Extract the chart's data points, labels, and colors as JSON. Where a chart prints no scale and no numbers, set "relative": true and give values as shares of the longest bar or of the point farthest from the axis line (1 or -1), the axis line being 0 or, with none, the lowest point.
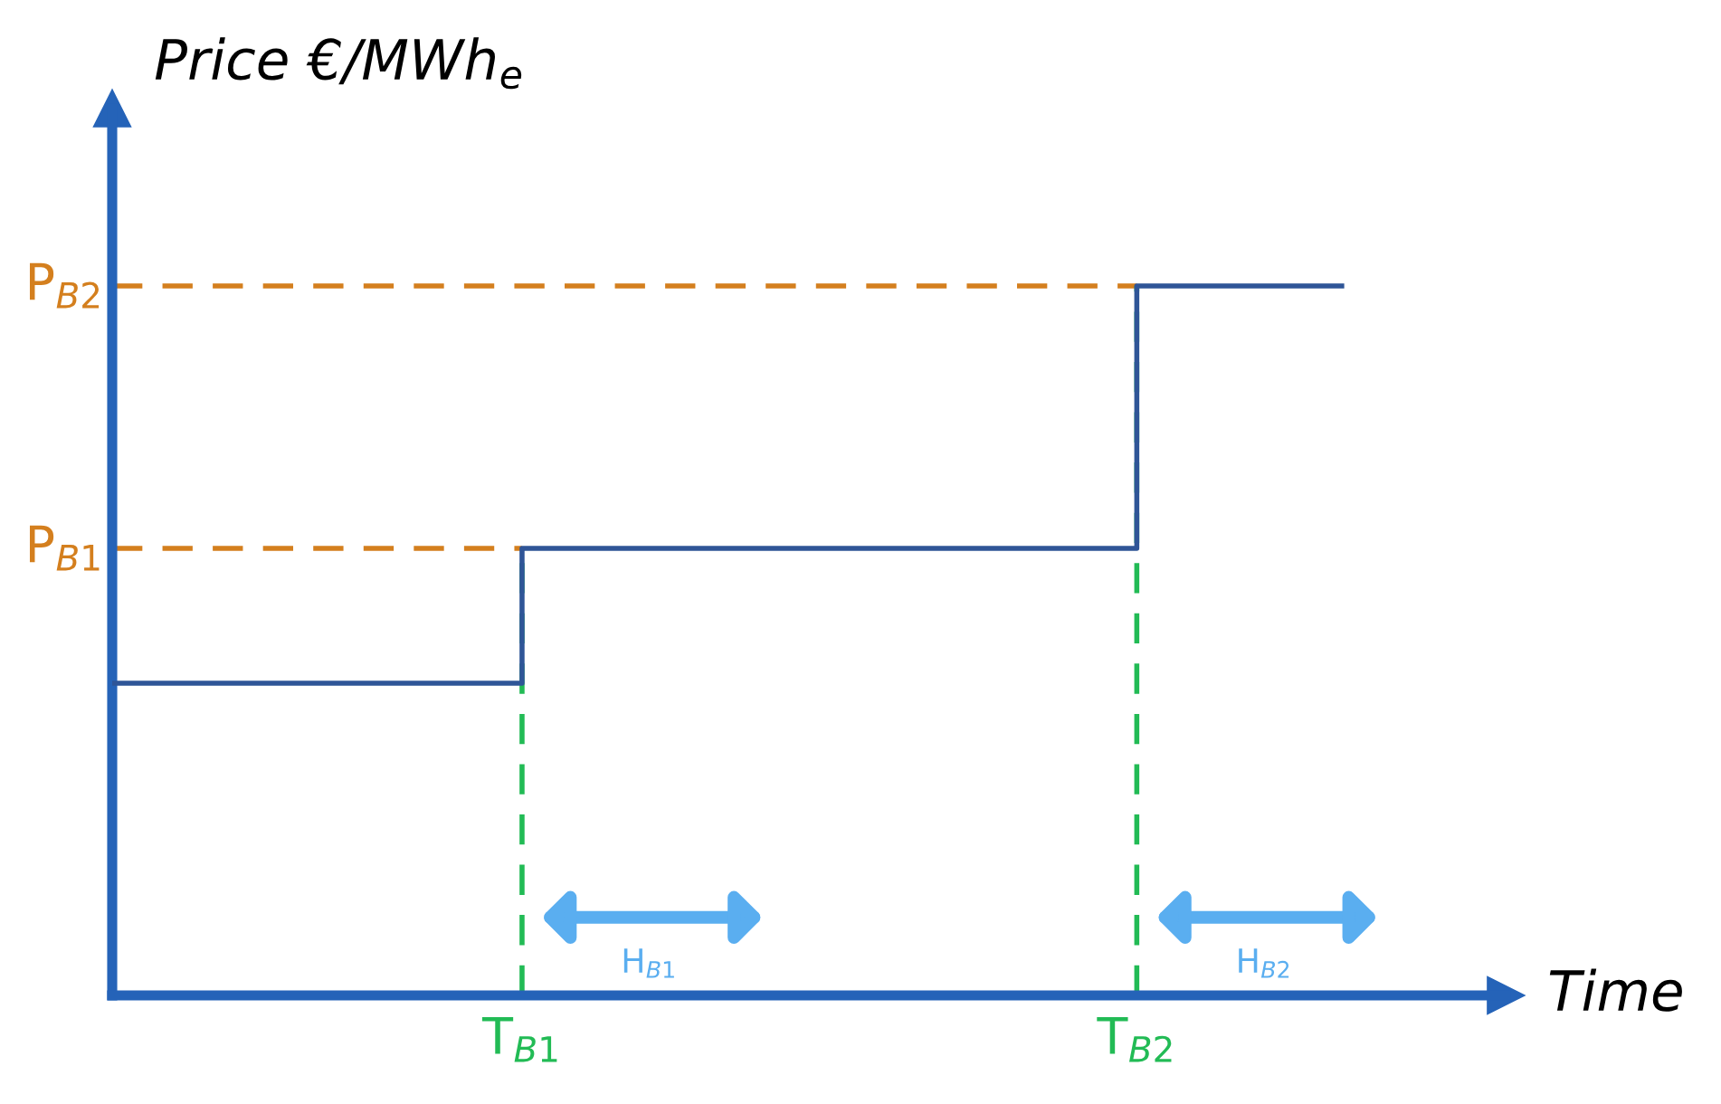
{
  "chart_data": {
    "type": "step",
    "relative": true,
    "xlabel": "Time",
    "ylabel": "Price €/MWh$_{e}$",
    "categories": [
      null,
      null,
      "T$_{B1}$",
      null,
      null,
      "T$_{B2}$",
      null
    ],
    "series": [
      {
        "color": "#2f5597",
        "values": [
          0.44,
          0.44,
          0.63,
          0.63,
          0.63,
          1,
          1
        ]
      }
    ],
    "ref_lines": [
      {
        "axis": "y",
        "value": 0.63,
        "label": "P$_{B1}$",
        "color": "#d47f1e",
        "line_style": "dashed"
      },
      {
        "axis": "y",
        "value": 1,
        "label": "P$_{B2}$",
        "color": "#d47f1e",
        "line_style": "dashed"
      },
      {
        "axis": "x",
        "value": "T$_{B1}$",
        "color": "#22bb55",
        "line_style": "dashed"
      },
      {
        "axis": "x",
        "value": "T$_{B2}$",
        "color": "#22bb55",
        "line_style": "dashed"
      }
    ],
    "annotations": [
      "H$_{B1}$",
      "H$_{B2}$"
    ],
    "grid": false,
    "legend": false,
    "marker": "none",
    "line_style": "solid"
  }
}
